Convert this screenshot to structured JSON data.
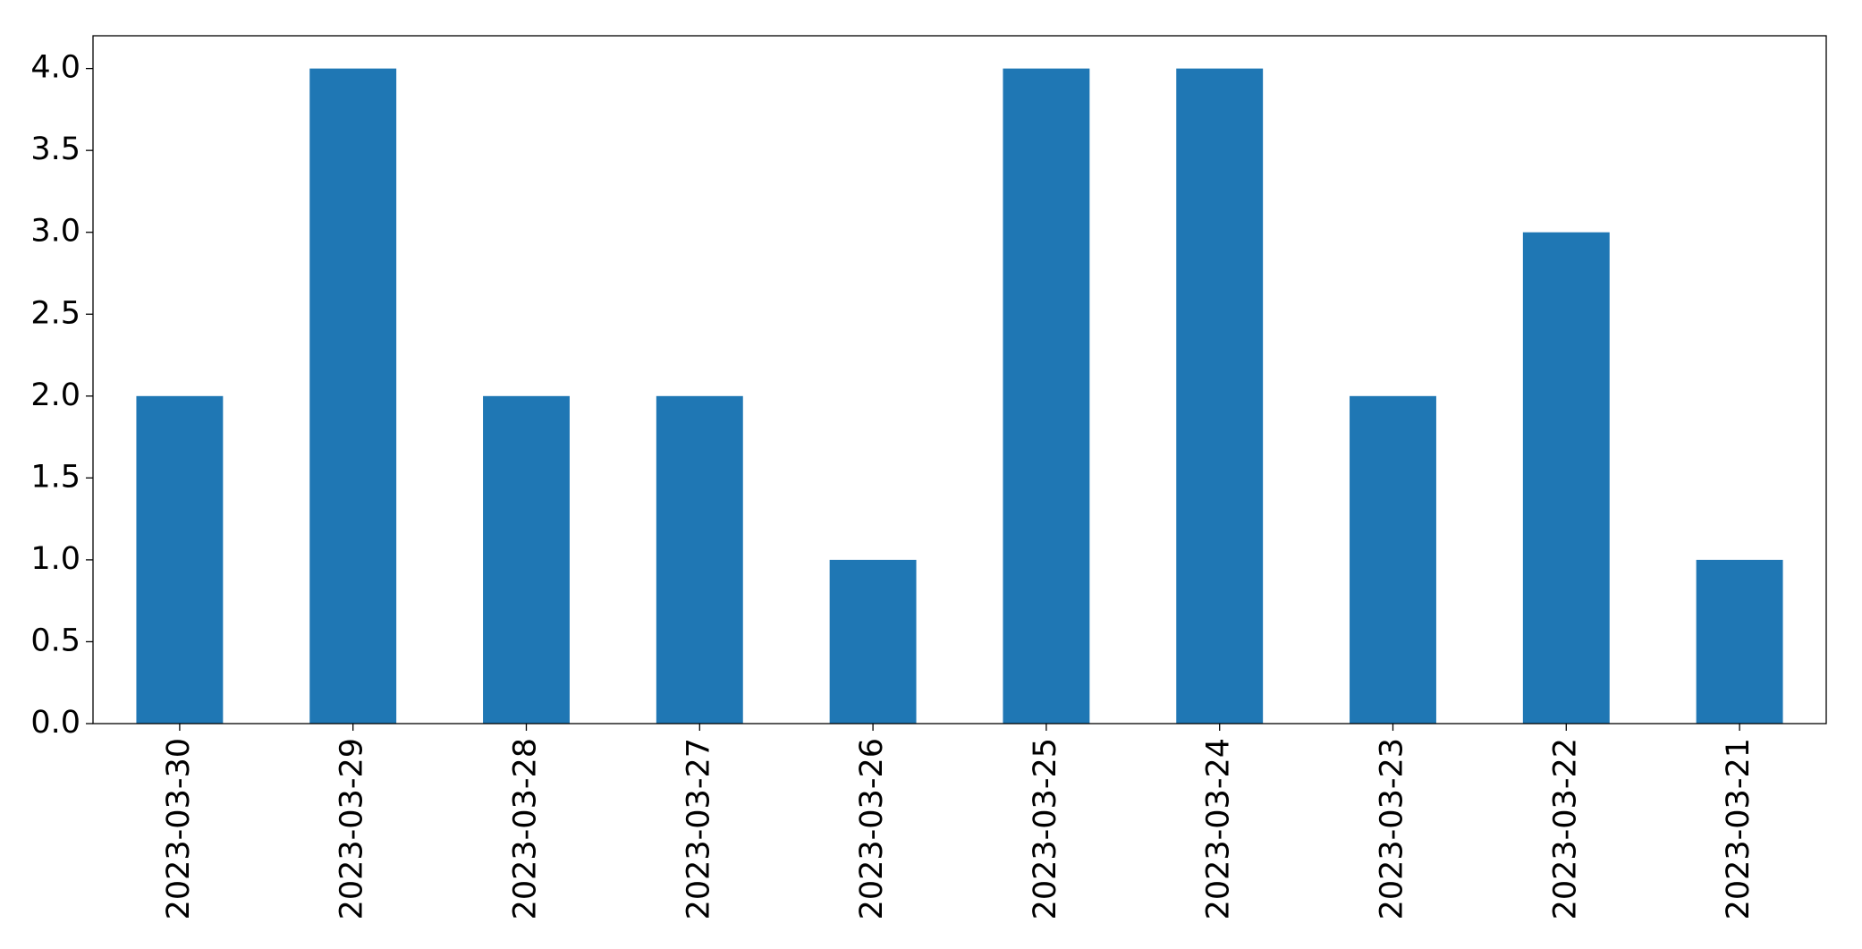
{
  "chart_data": {
    "type": "bar",
    "categories": [
      "2023-03-30",
      "2023-03-29",
      "2023-03-28",
      "2023-03-27",
      "2023-03-26",
      "2023-03-25",
      "2023-03-24",
      "2023-03-23",
      "2023-03-22",
      "2023-03-21"
    ],
    "values": [
      2,
      4,
      2,
      2,
      1,
      4,
      4,
      2,
      3,
      1
    ],
    "color": "#1f77b4",
    "ylim": [
      0,
      4.2
    ],
    "yticks": [
      {
        "value": 0,
        "label": "0.0"
      },
      0.5,
      {
        "value": 1,
        "label": "1.0"
      },
      1.5,
      {
        "value": 2,
        "label": "2.0"
      },
      2.5,
      {
        "value": 3,
        "label": "3.0"
      },
      3.5,
      {
        "value": 4,
        "label": "4.0"
      }
    ],
    "grid": false
  }
}
